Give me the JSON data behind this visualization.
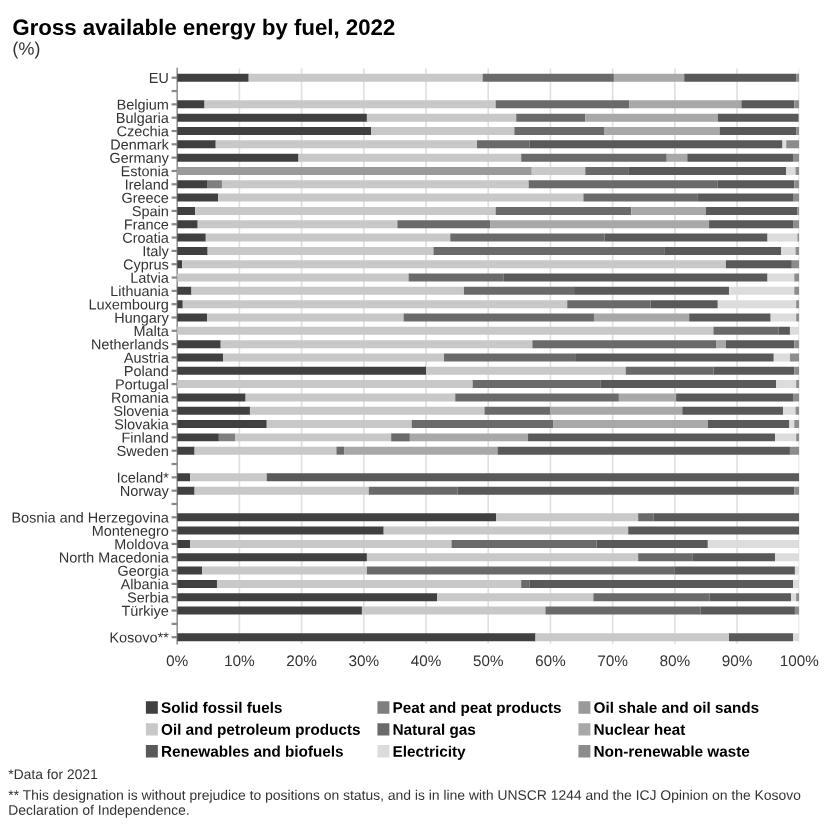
{
  "chart_data": {
    "type": "bar",
    "orientation": "horizontal",
    "stacked": true,
    "title": "Gross available energy by fuel, 2022",
    "subtitle": "(%)",
    "categories": [
      "EU",
      null,
      "Belgium",
      "Bulgaria",
      "Czechia",
      "Denmark",
      "Germany",
      "Estonia",
      "Ireland",
      "Greece",
      "Spain",
      "France",
      "Croatia",
      "Italy",
      "Cyprus",
      "Latvia",
      "Lithuania",
      "Luxembourg",
      "Hungary",
      "Malta",
      "Netherlands",
      "Austria",
      "Poland",
      "Portugal",
      "Romania",
      "Slovenia",
      "Slovakia",
      "Finland",
      "Sweden",
      null,
      "Iceland*",
      "Norway",
      null,
      "Bosnia and Herzegovina",
      "Montenegro",
      "Moldova",
      "North Macedonia",
      "Georgia",
      "Albania",
      "Serbia",
      "Türkiye",
      null,
      "Kosovo**"
    ],
    "series": [
      {
        "name": "Solid fossil fuels",
        "color": "#404040",
        "values": [
          11.5,
          null,
          4.4,
          30.5,
          31.2,
          6.2,
          19.5,
          0,
          4.8,
          6.6,
          2.9,
          3.3,
          4.6,
          4.9,
          0.8,
          0,
          2.3,
          0.9,
          4.8,
          0,
          7.0,
          7.4,
          40.0,
          0,
          11.0,
          11.7,
          14.4,
          6.7,
          2.8,
          null,
          2.1,
          2.8,
          null,
          51.3,
          33.2,
          2.1,
          30.5,
          4.0,
          6.4,
          41.8,
          29.7,
          null,
          57.6
        ]
      },
      {
        "name": "Peat and peat products",
        "color": "#7f7f7f",
        "values": [
          0,
          null,
          0,
          0,
          0,
          0,
          0,
          0,
          2.4,
          0,
          0,
          0,
          0,
          0,
          0,
          0,
          0,
          0,
          0,
          0,
          0,
          0,
          0,
          0,
          0,
          0,
          0,
          2.6,
          0,
          null,
          0,
          0,
          null,
          0,
          0,
          0,
          0,
          0,
          0,
          0,
          0,
          null,
          0
        ]
      },
      {
        "name": "Oil shale and oil sands",
        "color": "#9a9a9a",
        "values": [
          0,
          null,
          0,
          0,
          0,
          0,
          0,
          57.0,
          0,
          0,
          0,
          0,
          0,
          0,
          0,
          0,
          0,
          0,
          0,
          0,
          0,
          0,
          0,
          0,
          0,
          0,
          0,
          0,
          0,
          null,
          0,
          0,
          null,
          0,
          0,
          0,
          0,
          0,
          0,
          0,
          0,
          null,
          0
        ]
      },
      {
        "name": "Oil and petroleum products",
        "color": "#c8c8c8",
        "values": [
          37.6,
          null,
          46.8,
          24.0,
          23.0,
          42.0,
          35.8,
          8.6,
          49.3,
          58.7,
          48.3,
          32.1,
          39.3,
          36.3,
          87.4,
          37.2,
          43.8,
          61.8,
          31.6,
          86.2,
          50.1,
          35.5,
          32.1,
          47.5,
          33.7,
          37.7,
          23.3,
          25.1,
          22.8,
          null,
          12.3,
          28.0,
          null,
          22.8,
          39.3,
          42.0,
          43.6,
          26.5,
          48.9,
          25.1,
          29.5,
          null,
          31.1
        ]
      },
      {
        "name": "Natural gas",
        "color": "#6a6a6a",
        "values": [
          21.1,
          null,
          21.5,
          11.1,
          14.5,
          8.4,
          23.4,
          6.9,
          30.4,
          18.4,
          21.8,
          14.9,
          24.8,
          37.2,
          0,
          15.3,
          17.7,
          13.4,
          30.6,
          10.5,
          29.6,
          21.2,
          14.1,
          20.6,
          26.3,
          10.6,
          22.8,
          3.0,
          1.3,
          null,
          0,
          14.3,
          null,
          2.5,
          0,
          23.3,
          8.7,
          49.5,
          1.3,
          18.7,
          24.9,
          null,
          0
        ]
      },
      {
        "name": "Nuclear heat",
        "color": "#a8a8a8",
        "values": [
          11.3,
          null,
          18.0,
          21.3,
          18.5,
          0,
          3.3,
          0,
          0,
          0,
          12.0,
          35.2,
          0,
          0,
          0,
          0,
          0,
          0,
          15.3,
          0,
          1.5,
          0,
          0,
          0,
          9.2,
          21.2,
          24.8,
          19.0,
          24.6,
          null,
          0,
          0,
          null,
          0,
          0,
          0,
          0,
          0,
          0,
          0,
          0,
          null,
          0
        ]
      },
      {
        "name": "Renewables and biofuels",
        "color": "#595959",
        "values": [
          18.0,
          null,
          8.5,
          12.9,
          12.3,
          40.7,
          17.0,
          25.4,
          12.3,
          15.4,
          14.7,
          13.5,
          26.2,
          18.7,
          10.6,
          42.4,
          24.9,
          10.8,
          13.1,
          1.8,
          11.0,
          31.8,
          13.0,
          28.2,
          18.8,
          16.2,
          13.1,
          39.7,
          47.0,
          null,
          85.6,
          54.1,
          null,
          23.4,
          27.5,
          17.9,
          13.3,
          19.3,
          42.4,
          13.1,
          15.2,
          null,
          10.3
        ]
      },
      {
        "name": "Electricity",
        "color": "#dcdcdc",
        "values": [
          0,
          null,
          0,
          0,
          0,
          0.6,
          0,
          1.5,
          0,
          0,
          0,
          0,
          4.8,
          2.3,
          0,
          4.3,
          10.5,
          12.6,
          4.1,
          1.5,
          0,
          2.6,
          0,
          3.2,
          0,
          2.0,
          0.8,
          3.4,
          0,
          null,
          0,
          0,
          null,
          0,
          0,
          14.7,
          3.9,
          0.7,
          1.0,
          0.8,
          0,
          null,
          1.0
        ]
      },
      {
        "name": "Non-renewable waste",
        "color": "#8c8c8c",
        "values": [
          0.5,
          null,
          0.8,
          0.2,
          0.5,
          2.1,
          1.0,
          0.6,
          0.8,
          0.9,
          0.3,
          1.0,
          0.3,
          0.6,
          1.2,
          0.8,
          0.8,
          0.5,
          0.5,
          0,
          0.8,
          1.5,
          0.8,
          0.5,
          1.0,
          0.6,
          0.8,
          0.5,
          1.5,
          null,
          0,
          0.8,
          null,
          0,
          0,
          0,
          0,
          0,
          0,
          0.5,
          0.7,
          null,
          0
        ]
      }
    ],
    "xlim": [
      0,
      100
    ],
    "xticks": [
      {
        "value": 0,
        "label": "0%"
      },
      {
        "value": 10,
        "label": "10%"
      },
      {
        "value": 20,
        "label": "20%"
      },
      {
        "value": 30,
        "label": "30%"
      },
      {
        "value": 40,
        "label": "40%"
      },
      {
        "value": 50,
        "label": "50%"
      },
      {
        "value": 60,
        "label": "60%"
      },
      {
        "value": 70,
        "label": "70%"
      },
      {
        "value": 80,
        "label": "80%"
      },
      {
        "value": 90,
        "label": "90%"
      },
      {
        "value": 100,
        "label": "100%"
      }
    ],
    "grid": "x",
    "legend": "bottom",
    "annotations": [
      "*Data for 2021",
      "** This designation is without prejudice to positions on status, and is in line with UNSCR 1244 and the ICJ Opinion on the Kosovo Declaration of Independence."
    ]
  }
}
